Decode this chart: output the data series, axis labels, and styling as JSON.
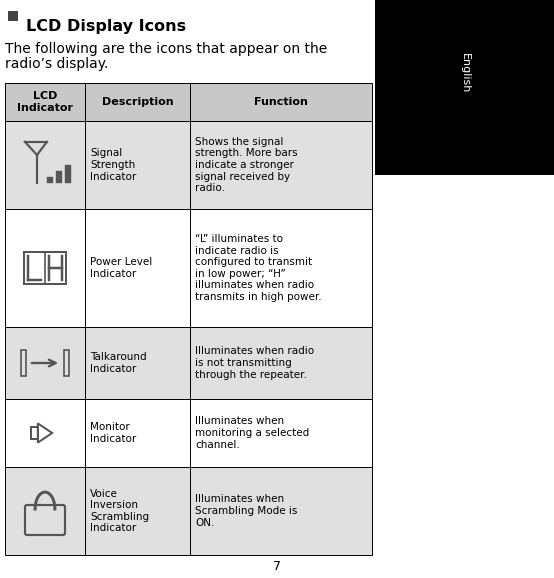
{
  "title": "LCD Display Icons",
  "intro_line1": "The following are the icons that appear on the",
  "intro_line2": "radio’s display.",
  "page_number": "7",
  "sidebar_text": "English",
  "sidebar_bg": "#000000",
  "sidebar_text_color": "#ffffff",
  "page_bg": "#ffffff",
  "header_cols": [
    "LCD\nIndicator",
    "Description",
    "Function"
  ],
  "rows": [
    {
      "icon": "signal",
      "description": "Signal\nStrength\nIndicator",
      "function": "Shows the signal\nstrength. More bars\nindicate a stronger\nsignal received by\nradio.",
      "bg": "#e0e0e0"
    },
    {
      "icon": "power",
      "description": "Power Level\nIndicator",
      "function": "“L” illuminates to\nindicate radio is\nconfigured to transmit\nin low power; “H”\nilluminates when radio\ntransmits in high power.",
      "bg": "#ffffff"
    },
    {
      "icon": "talkaround",
      "description": "Talkaround\nIndicator",
      "function": "Illuminates when radio\nis not transmitting\nthrough the repeater.",
      "bg": "#e0e0e0"
    },
    {
      "icon": "monitor",
      "description": "Monitor\nIndicator",
      "function": "Illuminates when\nmonitoring a selected\nchannel.",
      "bg": "#ffffff"
    },
    {
      "icon": "voice",
      "description": "Voice\nInversion\nScrambling\nIndicator",
      "function": "Illuminates when\nScrambling Mode is\nON.",
      "bg": "#e0e0e0"
    }
  ],
  "title_fontsize": 11.5,
  "intro_fontsize": 10,
  "header_fontsize": 8,
  "cell_fontsize": 7.5,
  "page_num_fontsize": 9,
  "icon_color": "#555555",
  "icon_lw": 1.2
}
